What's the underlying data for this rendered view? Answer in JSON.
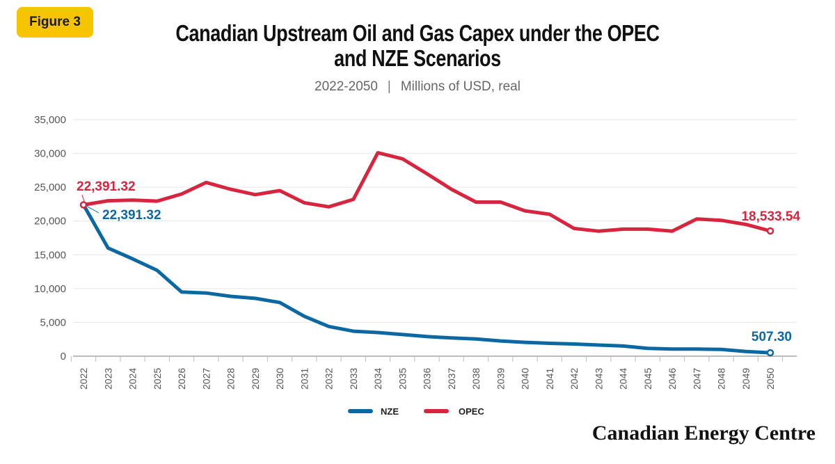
{
  "badge": "Figure 3",
  "title_line1": "Canadian Upstream Oil and Gas Capex under the OPEC",
  "title_line2": "and NZE Scenarios",
  "subtitle_range": "2022-2050",
  "subtitle_sep": "|",
  "subtitle_units": "Millions of USD, real",
  "brand": "Canadian Energy Centre",
  "colors": {
    "NZE": "#0b68a3",
    "OPEC": "#d8253f",
    "badge": "#f6c500"
  },
  "chart_data": {
    "type": "line",
    "title": "Canadian Upstream Oil and Gas Capex under the OPEC and NZE Scenarios",
    "subtitle": "2022-2050 | Millions of USD, real",
    "xlabel": "",
    "ylabel": "",
    "ylim": [
      0,
      35000
    ],
    "yticks": [
      0,
      5000,
      10000,
      15000,
      20000,
      25000,
      30000,
      35000
    ],
    "ytick_labels": [
      "0",
      "5,000",
      "10,000",
      "15,000",
      "20,000",
      "25,000",
      "30,000",
      "35,000"
    ],
    "grid": true,
    "legend": "bottom-center",
    "x": [
      2022,
      2023,
      2024,
      2025,
      2026,
      2027,
      2028,
      2029,
      2030,
      2031,
      2032,
      2033,
      2034,
      2035,
      2036,
      2037,
      2038,
      2039,
      2040,
      2041,
      2042,
      2043,
      2044,
      2045,
      2046,
      2047,
      2048,
      2049,
      2050
    ],
    "series": [
      {
        "name": "NZE",
        "values": [
          22391.32,
          16000,
          14400,
          12700,
          9500,
          9350,
          8850,
          8550,
          7950,
          5900,
          4400,
          3700,
          3500,
          3200,
          2900,
          2700,
          2550,
          2250,
          2050,
          1900,
          1800,
          1650,
          1500,
          1150,
          1050,
          1050,
          1000,
          700,
          507.3
        ]
      },
      {
        "name": "OPEC",
        "values": [
          22391.32,
          23000,
          23100,
          22950,
          24000,
          25700,
          24700,
          23900,
          24500,
          22700,
          22100,
          23200,
          30100,
          29200,
          27000,
          24700,
          22800,
          22800,
          21500,
          21000,
          18900,
          18500,
          18800,
          18800,
          18500,
          20300,
          20100,
          19500,
          18533.54
        ]
      }
    ],
    "annotations": [
      {
        "series": "OPEC",
        "x": 2022,
        "label": "22,391.32"
      },
      {
        "series": "NZE",
        "x": 2022,
        "label": "22,391.32"
      },
      {
        "series": "OPEC",
        "x": 2050,
        "label": "18,533.54"
      },
      {
        "series": "NZE",
        "x": 2050,
        "label": "507.30"
      }
    ]
  }
}
